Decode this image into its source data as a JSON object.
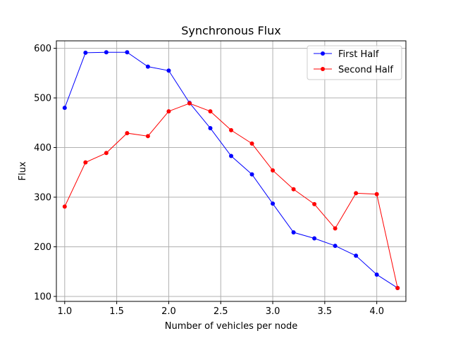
{
  "chart_data": {
    "type": "line",
    "title": "Synchronous Flux",
    "xlabel": "Number of vehicles per node",
    "ylabel": "Flux",
    "xlim": [
      0.92,
      4.28
    ],
    "ylim": [
      90,
      615
    ],
    "x_ticks": [
      1.0,
      1.5,
      2.0,
      2.5,
      3.0,
      3.5,
      4.0
    ],
    "x_tick_labels": [
      "1.0",
      "1.5",
      "2.0",
      "2.5",
      "3.0",
      "3.5",
      "4.0"
    ],
    "y_ticks": [
      100,
      200,
      300,
      400,
      500,
      600
    ],
    "y_tick_labels": [
      "100",
      "200",
      "300",
      "400",
      "500",
      "600"
    ],
    "grid": true,
    "legend_position": "top-right",
    "x": [
      1.0,
      1.2,
      1.4,
      1.6,
      1.8,
      2.0,
      2.2,
      2.4,
      2.6,
      2.8,
      3.0,
      3.2,
      3.4,
      3.6,
      3.8,
      4.0,
      4.2
    ],
    "series": [
      {
        "name": "First Half",
        "color": "#0000ff",
        "values": [
          480,
          591,
          592,
          592,
          563,
          555,
          490,
          439,
          383,
          346,
          287,
          229,
          217,
          202,
          182,
          144,
          117
        ]
      },
      {
        "name": "Second Half",
        "color": "#ff0000",
        "values": [
          281,
          370,
          389,
          429,
          423,
          473,
          489,
          473,
          435,
          408,
          354,
          316,
          286,
          237,
          308,
          306,
          117
        ]
      }
    ]
  }
}
